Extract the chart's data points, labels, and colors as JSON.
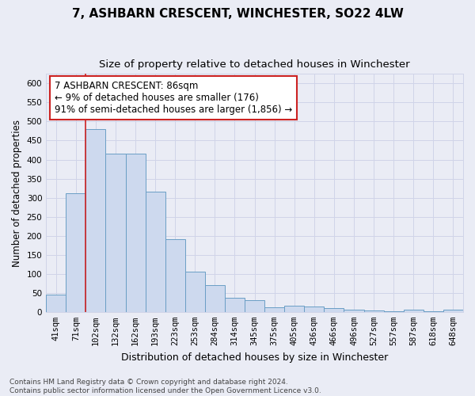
{
  "title": "7, ASHBARN CRESCENT, WINCHESTER, SO22 4LW",
  "subtitle": "Size of property relative to detached houses in Winchester",
  "xlabel": "Distribution of detached houses by size in Winchester",
  "ylabel": "Number of detached properties",
  "bar_color": "#cdd9ee",
  "bar_edge_color": "#6a9ec5",
  "categories": [
    "41sqm",
    "71sqm",
    "102sqm",
    "132sqm",
    "162sqm",
    "193sqm",
    "223sqm",
    "253sqm",
    "284sqm",
    "314sqm",
    "345sqm",
    "375sqm",
    "405sqm",
    "436sqm",
    "466sqm",
    "496sqm",
    "527sqm",
    "557sqm",
    "587sqm",
    "618sqm",
    "648sqm"
  ],
  "values": [
    46,
    311,
    480,
    415,
    415,
    315,
    192,
    105,
    70,
    38,
    30,
    13,
    16,
    14,
    10,
    5,
    4,
    1,
    5,
    1,
    5
  ],
  "red_line_x": 1.5,
  "annotation_line1": "7 ASHBARN CRESCENT: 86sqm",
  "annotation_line2": "← 9% of detached houses are smaller (176)",
  "annotation_line3": "91% of semi-detached houses are larger (1,856) →",
  "annotation_box_color": "white",
  "annotation_box_edge": "#cc2222",
  "ylim": [
    0,
    625
  ],
  "yticks": [
    0,
    50,
    100,
    150,
    200,
    250,
    300,
    350,
    400,
    450,
    500,
    550,
    600
  ],
  "footnote": "Contains HM Land Registry data © Crown copyright and database right 2024.\nContains public sector information licensed under the Open Government Licence v3.0.",
  "background_color": "#eaecf5",
  "grid_color": "#d0d4e8",
  "title_fontsize": 11,
  "subtitle_fontsize": 9.5,
  "xlabel_fontsize": 9,
  "ylabel_fontsize": 8.5,
  "tick_fontsize": 7.5,
  "annotation_fontsize": 8.5,
  "footnote_fontsize": 6.5
}
